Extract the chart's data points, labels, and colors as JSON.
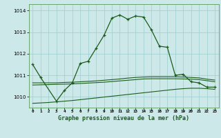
{
  "title": "Graphe pression niveau de la mer (hPa)",
  "bg_color": "#cce8e8",
  "line_color": "#1a5c1a",
  "x_labels": [
    "0",
    "1",
    "2",
    "3",
    "4",
    "5",
    "6",
    "7",
    "8",
    "9",
    "10",
    "11",
    "12",
    "13",
    "14",
    "15",
    "16",
    "17",
    "18",
    "19",
    "20",
    "21",
    "22",
    "23"
  ],
  "ylim": [
    1009.5,
    1014.3
  ],
  "yticks": [
    1010,
    1011,
    1012,
    1013,
    1014
  ],
  "line_main_x": [
    0,
    1,
    3,
    4,
    5,
    6,
    7,
    8,
    9,
    10,
    11,
    12,
    13,
    14,
    15,
    16,
    17,
    18,
    19,
    20,
    21,
    22,
    23
  ],
  "line_main_y": [
    1011.5,
    1010.9,
    1009.8,
    1010.3,
    1010.65,
    1011.55,
    1011.65,
    1012.25,
    1012.85,
    1013.65,
    1013.8,
    1013.6,
    1013.75,
    1013.7,
    1013.1,
    1012.35,
    1012.3,
    1011.0,
    1011.05,
    1010.7,
    1010.65,
    1010.45,
    1010.45
  ],
  "line_clim_low": [
    1009.7,
    1009.72,
    1009.74,
    1009.77,
    1009.8,
    1009.83,
    1009.87,
    1009.91,
    1009.95,
    1009.99,
    1010.03,
    1010.07,
    1010.11,
    1010.15,
    1010.19,
    1010.23,
    1010.27,
    1010.31,
    1010.35,
    1010.38,
    1010.4,
    1010.4,
    1010.38,
    1010.35
  ],
  "line_clim_high": [
    1010.65,
    1010.65,
    1010.65,
    1010.65,
    1010.67,
    1010.68,
    1010.7,
    1010.72,
    1010.74,
    1010.77,
    1010.8,
    1010.83,
    1010.87,
    1010.9,
    1010.92,
    1010.93,
    1010.93,
    1010.93,
    1010.93,
    1010.92,
    1010.9,
    1010.88,
    1010.82,
    1010.78
  ],
  "line_clim_mid": [
    1010.55,
    1010.56,
    1010.57,
    1010.58,
    1010.59,
    1010.6,
    1010.62,
    1010.64,
    1010.66,
    1010.68,
    1010.71,
    1010.74,
    1010.77,
    1010.8,
    1010.83,
    1010.84,
    1010.84,
    1010.84,
    1010.84,
    1010.83,
    1010.82,
    1010.8,
    1010.75,
    1010.7
  ]
}
